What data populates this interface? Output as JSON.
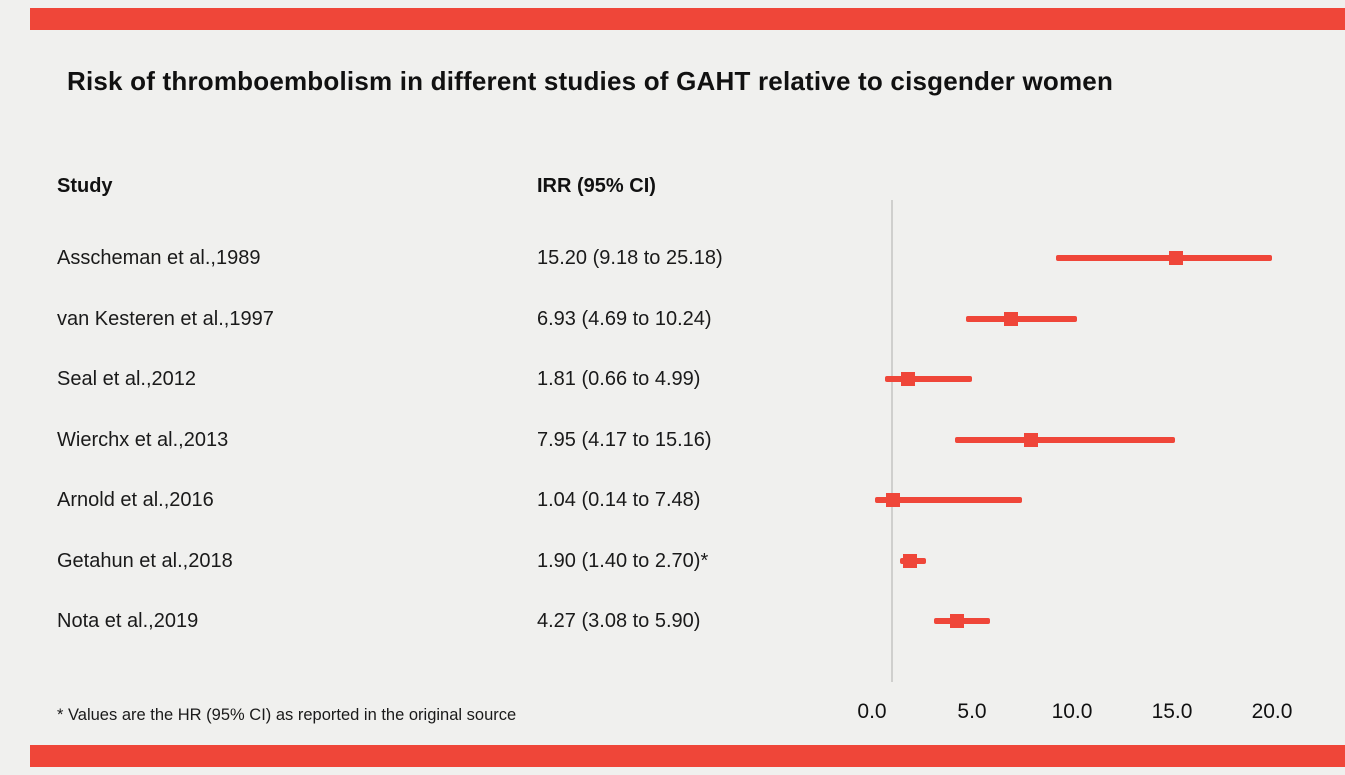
{
  "page": {
    "title": "Risk of thromboembolism in different studies of GAHT relative to cisgender women",
    "footnote": "* Values are the HR (95% CI) as reported in the original source",
    "accent_color": "#ef4639",
    "background_color": "#f0f0ee"
  },
  "columns": {
    "study": "Study",
    "irr": "IRR (95% CI)"
  },
  "chart_data": {
    "type": "forest",
    "title": "Risk of thromboembolism in different studies of GAHT relative to cisgender women",
    "xlim": [
      0,
      20
    ],
    "x_ticks": [
      {
        "value": 0,
        "label": "0.0"
      },
      {
        "value": 5,
        "label": "5.0"
      },
      {
        "value": 10,
        "label": "10.0"
      },
      {
        "value": 15,
        "label": "15.0"
      },
      {
        "value": 20,
        "label": "20.0"
      }
    ],
    "reference_line": 1.0,
    "marker_color": "#ef4639",
    "grid": false,
    "studies": [
      {
        "label": "Asscheman et al.,1989",
        "irr_text": "15.20 (9.18 to 25.18)",
        "estimate": 15.2,
        "ci_low": 9.18,
        "ci_high": 25.18
      },
      {
        "label": "van Kesteren et al.,1997",
        "irr_text": "6.93 (4.69 to 10.24)",
        "estimate": 6.93,
        "ci_low": 4.69,
        "ci_high": 10.24
      },
      {
        "label": "Seal et al.,2012",
        "irr_text": "1.81 (0.66 to 4.99)",
        "estimate": 1.81,
        "ci_low": 0.66,
        "ci_high": 4.99
      },
      {
        "label": "Wierchx et al.,2013",
        "irr_text": "7.95 (4.17 to 15.16)",
        "estimate": 7.95,
        "ci_low": 4.17,
        "ci_high": 15.16
      },
      {
        "label": "Arnold et al.,2016",
        "irr_text": "1.04 (0.14 to 7.48)",
        "estimate": 1.04,
        "ci_low": 0.14,
        "ci_high": 7.48
      },
      {
        "label": "Getahun et al.,2018",
        "irr_text": "1.90 (1.40 to 2.70)*",
        "estimate": 1.9,
        "ci_low": 1.4,
        "ci_high": 2.7
      },
      {
        "label": "Nota et al.,2019",
        "irr_text": "4.27 (3.08 to 5.90)",
        "estimate": 4.27,
        "ci_low": 3.08,
        "ci_high": 5.9
      }
    ]
  }
}
